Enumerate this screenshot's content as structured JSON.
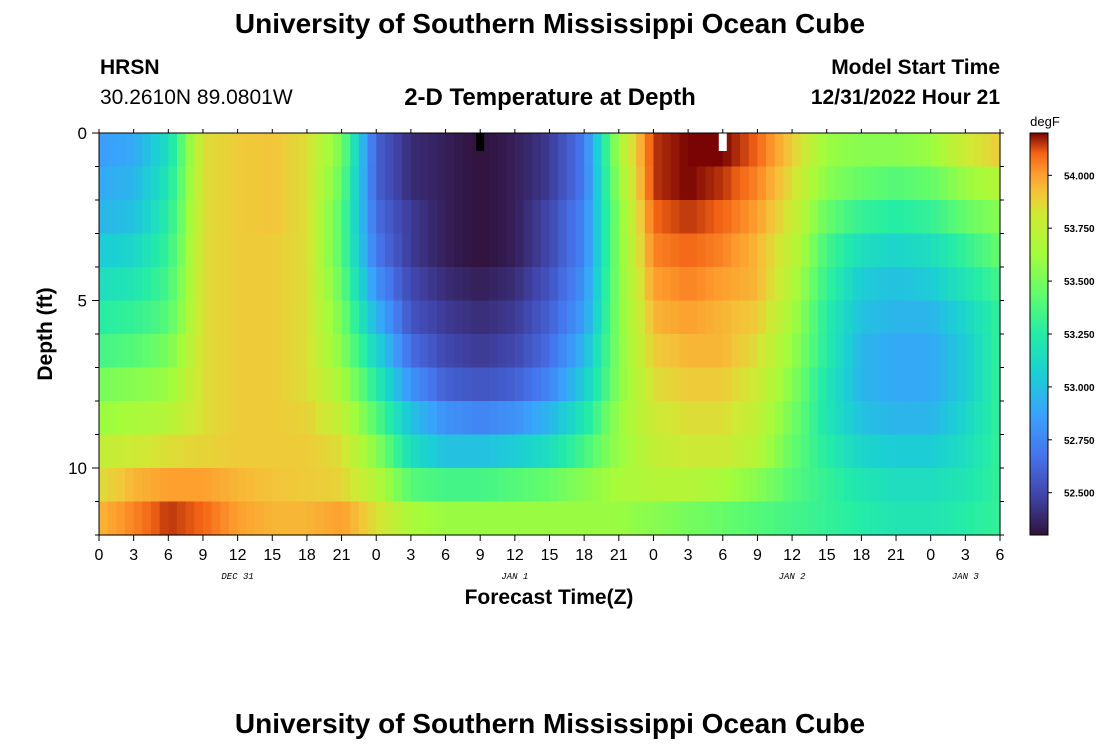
{
  "page": {
    "title": "University of Southern Mississippi Ocean Cube",
    "footer_title": "University of Southern Mississippi Ocean Cube",
    "station": "HRSN",
    "coordinates": "30.2610N  89.0801W",
    "subtitle": "2-D Temperature at Depth",
    "model_start_label": "Model Start Time",
    "model_start_value": "12/31/2022 Hour 21"
  },
  "chart_data": {
    "type": "heatmap",
    "title": "2-D Temperature at Depth",
    "xlabel": "Forecast Time(Z)",
    "ylabel": "Depth (ft)",
    "x_range_hours": [
      0,
      78
    ],
    "y_range_ft": [
      0,
      12
    ],
    "y_ticks": [
      "0",
      "5",
      "10"
    ],
    "x_tick_labels": [
      "0",
      "3",
      "6",
      "9",
      "12",
      "15",
      "18",
      "21",
      "0",
      "3",
      "6",
      "9",
      "12",
      "15",
      "18",
      "21",
      "0",
      "3",
      "6",
      "9",
      "12",
      "15",
      "18",
      "21",
      "0",
      "3",
      "6"
    ],
    "date_labels": [
      {
        "text": "DEC 31",
        "hour": 12
      },
      {
        "text": "JAN 1",
        "hour": 36
      },
      {
        "text": "JAN 2",
        "hour": 60
      },
      {
        "text": "JAN 3",
        "hour": 75
      }
    ],
    "markers": [
      {
        "hour": 33,
        "color": "#000000"
      },
      {
        "hour": 54,
        "color": "#ffffff"
      }
    ],
    "colorbar": {
      "unit": "degF",
      "min": 52.3,
      "max": 54.2,
      "tick_labels": [
        "54.000",
        "53.750",
        "53.500",
        "53.250",
        "53.000",
        "52.750",
        "52.500"
      ],
      "tick_values": [
        54.0,
        53.75,
        53.5,
        53.25,
        53.0,
        52.75,
        52.5
      ]
    },
    "depth_levels_ft": [
      0.5,
      1.5,
      2.5,
      3.5,
      4.5,
      5.5,
      6.5,
      7.5,
      8.5,
      9.5,
      10.5,
      11.5
    ],
    "time_hours": [
      0,
      3,
      6,
      9,
      12,
      15,
      18,
      21,
      24,
      27,
      30,
      33,
      36,
      39,
      42,
      45,
      48,
      51,
      54,
      57,
      60,
      63,
      66,
      69,
      72,
      75,
      78
    ],
    "temperature_degF": [
      [
        52.85,
        52.9,
        53.15,
        53.85,
        53.9,
        53.92,
        53.85,
        53.5,
        52.6,
        52.4,
        52.35,
        52.3,
        52.35,
        52.45,
        52.7,
        53.65,
        54.15,
        54.2,
        54.2,
        54.1,
        53.9,
        53.6,
        53.55,
        53.55,
        53.6,
        53.8,
        53.9
      ],
      [
        52.9,
        52.95,
        53.2,
        53.85,
        53.9,
        53.92,
        53.85,
        53.45,
        52.6,
        52.4,
        52.35,
        52.3,
        52.35,
        52.45,
        52.7,
        53.6,
        54.15,
        54.2,
        54.15,
        54.05,
        53.85,
        53.55,
        53.45,
        53.4,
        53.45,
        53.6,
        53.7
      ],
      [
        52.95,
        53.0,
        53.25,
        53.85,
        53.9,
        53.92,
        53.85,
        53.4,
        52.65,
        52.45,
        52.35,
        52.3,
        52.35,
        52.5,
        52.75,
        53.55,
        54.1,
        54.15,
        54.1,
        54.0,
        53.8,
        53.45,
        53.3,
        53.25,
        53.3,
        53.45,
        53.55
      ],
      [
        53.05,
        53.1,
        53.3,
        53.85,
        53.9,
        53.9,
        53.85,
        53.4,
        52.7,
        52.45,
        52.35,
        52.3,
        52.35,
        52.5,
        52.75,
        53.55,
        54.05,
        54.1,
        54.05,
        53.95,
        53.75,
        53.35,
        53.15,
        53.1,
        53.15,
        53.3,
        53.45
      ],
      [
        53.15,
        53.2,
        53.35,
        53.85,
        53.9,
        53.9,
        53.85,
        53.45,
        52.8,
        52.5,
        52.4,
        52.35,
        52.4,
        52.55,
        52.8,
        53.55,
        54.0,
        54.05,
        54.0,
        53.95,
        53.7,
        53.3,
        53.05,
        53.0,
        53.05,
        53.2,
        53.35
      ],
      [
        53.25,
        53.3,
        53.4,
        53.85,
        53.9,
        53.9,
        53.85,
        53.5,
        52.95,
        52.55,
        52.45,
        52.4,
        52.45,
        52.6,
        52.85,
        53.55,
        53.95,
        54.0,
        53.95,
        53.9,
        53.65,
        53.25,
        53.0,
        52.95,
        52.95,
        53.1,
        53.3
      ],
      [
        53.35,
        53.4,
        53.5,
        53.85,
        53.9,
        53.9,
        53.85,
        53.55,
        53.1,
        52.65,
        52.5,
        52.45,
        52.5,
        52.65,
        52.95,
        53.55,
        53.9,
        53.95,
        53.95,
        53.85,
        53.6,
        53.25,
        52.95,
        52.9,
        52.9,
        53.05,
        53.3
      ],
      [
        53.5,
        53.55,
        53.6,
        53.85,
        53.9,
        53.9,
        53.85,
        53.65,
        53.25,
        52.8,
        52.6,
        52.55,
        52.6,
        52.75,
        53.05,
        53.55,
        53.85,
        53.9,
        53.9,
        53.8,
        53.55,
        53.2,
        52.95,
        52.9,
        52.9,
        53.05,
        53.3
      ],
      [
        53.6,
        53.65,
        53.7,
        53.85,
        53.9,
        53.9,
        53.88,
        53.75,
        53.4,
        53.0,
        52.8,
        52.75,
        52.8,
        52.95,
        53.2,
        53.6,
        53.8,
        53.85,
        53.85,
        53.75,
        53.5,
        53.2,
        53.0,
        52.95,
        52.95,
        53.1,
        53.3
      ],
      [
        53.75,
        53.8,
        53.85,
        53.88,
        53.9,
        53.9,
        53.9,
        53.85,
        53.55,
        53.15,
        53.0,
        53.0,
        53.05,
        53.15,
        53.35,
        53.6,
        53.75,
        53.8,
        53.8,
        53.7,
        53.45,
        53.25,
        53.1,
        53.05,
        53.05,
        53.15,
        53.3
      ],
      [
        53.85,
        53.95,
        54.0,
        54.0,
        53.95,
        53.92,
        53.9,
        53.88,
        53.7,
        53.4,
        53.35,
        53.35,
        53.4,
        53.45,
        53.55,
        53.65,
        53.7,
        53.7,
        53.65,
        53.55,
        53.4,
        53.3,
        53.2,
        53.15,
        53.15,
        53.2,
        53.3
      ],
      [
        53.95,
        54.05,
        54.15,
        54.1,
        54.0,
        53.95,
        53.95,
        54.0,
        53.85,
        53.65,
        53.6,
        53.6,
        53.6,
        53.6,
        53.6,
        53.6,
        53.55,
        53.5,
        53.45,
        53.4,
        53.35,
        53.3,
        53.25,
        53.2,
        53.2,
        53.25,
        53.3
      ]
    ]
  }
}
